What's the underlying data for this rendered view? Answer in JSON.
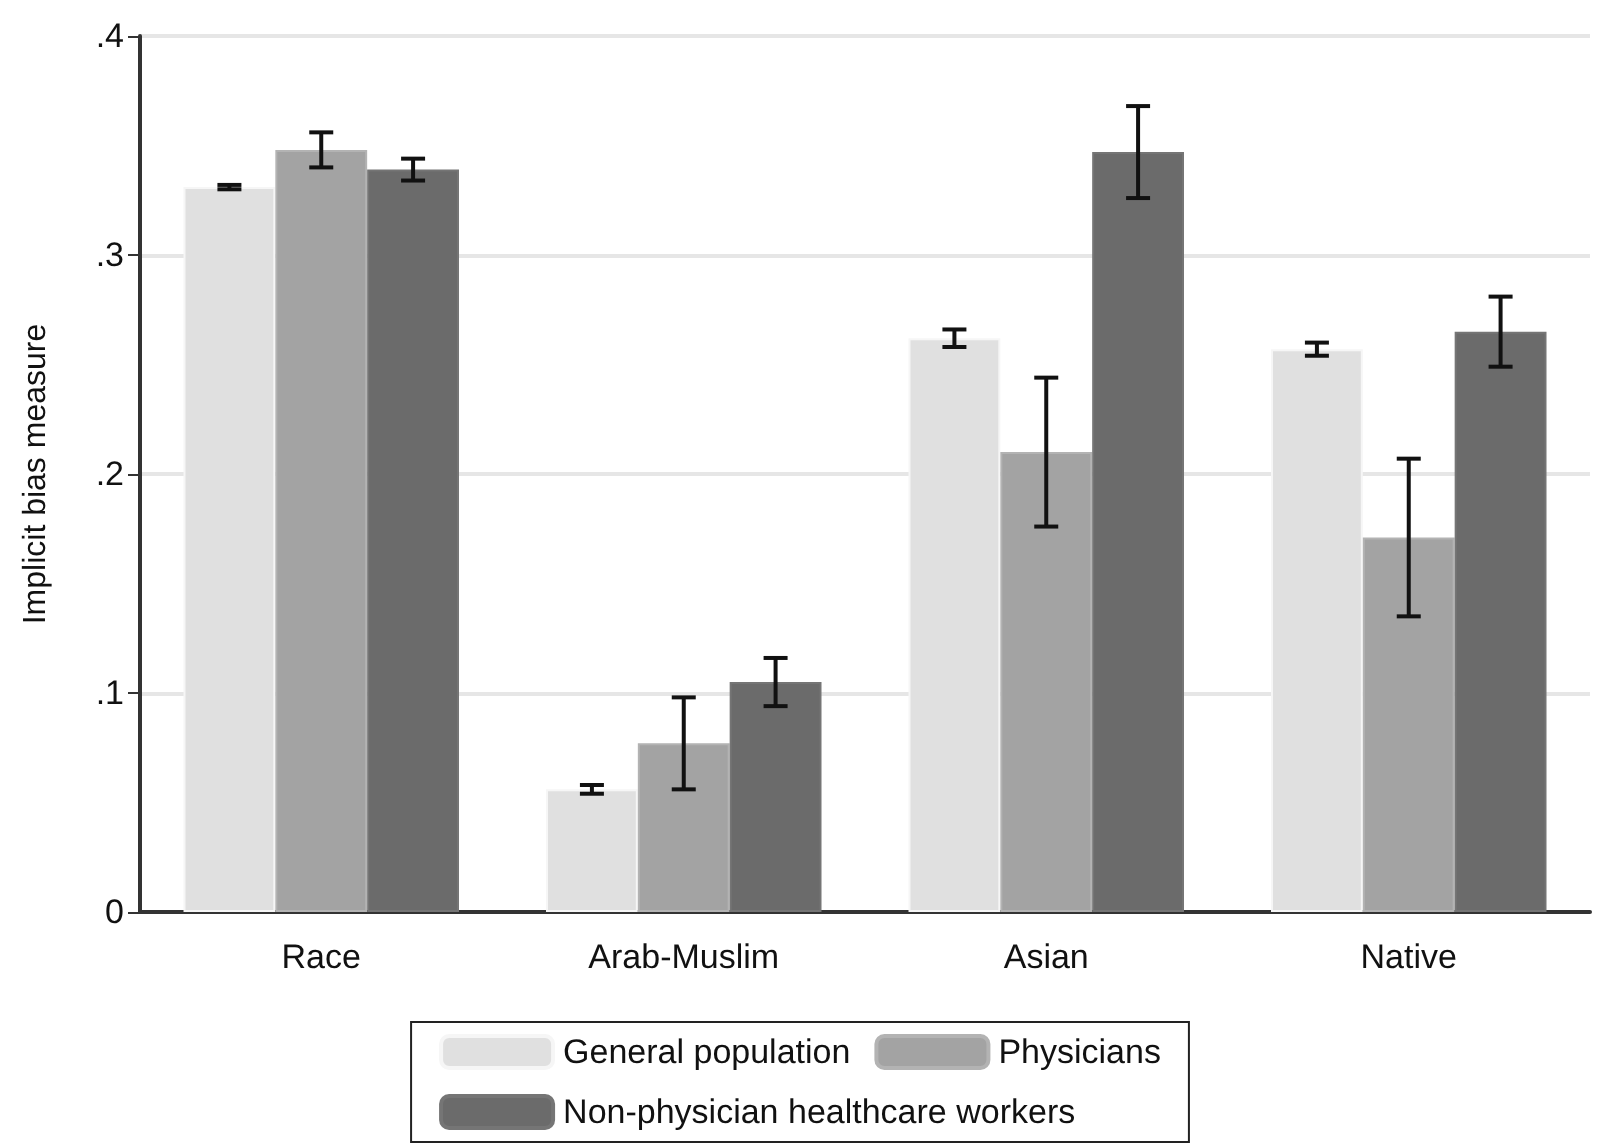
{
  "chart_data": {
    "type": "bar",
    "ylabel": "Implicit bias measure",
    "categories": [
      "Race",
      "Arab-Muslim",
      "Asian",
      "Native"
    ],
    "series": [
      {
        "name": "General population",
        "color": "#e0e0e0",
        "values": [
          0.331,
          0.056,
          0.262,
          0.257
        ],
        "errors": [
          0.001,
          0.002,
          0.004,
          0.003
        ]
      },
      {
        "name": "Physicians",
        "color": "#a3a3a3",
        "values": [
          0.348,
          0.077,
          0.21,
          0.171
        ],
        "errors": [
          0.008,
          0.021,
          0.034,
          0.036
        ]
      },
      {
        "name": "Non-physician healthcare workers",
        "color": "#6b6b6b",
        "values": [
          0.339,
          0.105,
          0.347,
          0.265
        ],
        "errors": [
          0.005,
          0.011,
          0.021,
          0.016
        ]
      }
    ],
    "ylim": [
      0,
      0.4
    ],
    "yticks": [
      0,
      {
        "value": 0.1,
        "label": ".1"
      },
      {
        "value": 0.2,
        "label": ".2"
      },
      {
        "value": 0.3,
        "label": ".3"
      },
      {
        "value": 0.4,
        "label": ".4"
      }
    ],
    "grid": "y",
    "legend": "bottom"
  }
}
